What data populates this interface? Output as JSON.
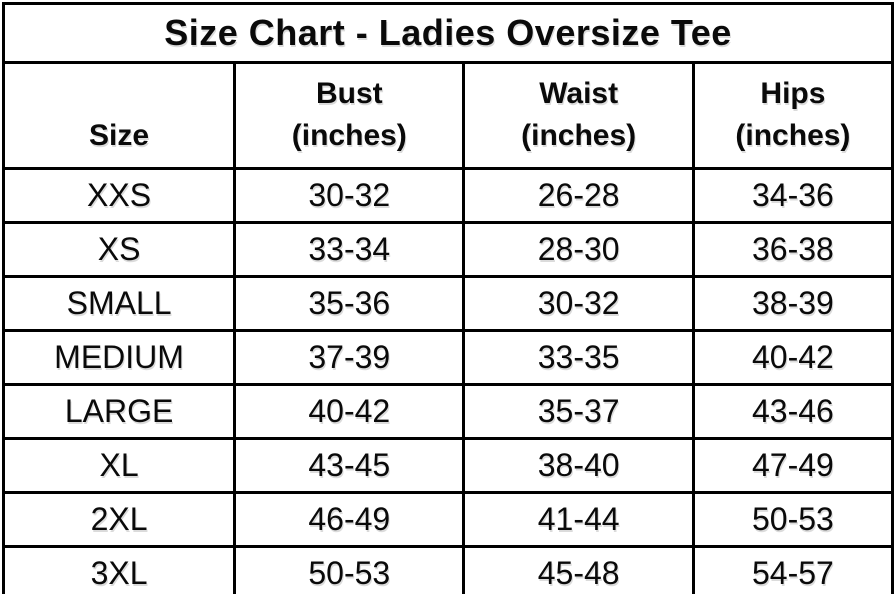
{
  "title": "Size Chart - Ladies Oversize Tee",
  "colors": {
    "background": "#ffffff",
    "border": "#000000",
    "text": "#0a0a0a"
  },
  "table": {
    "headers": {
      "size": {
        "line1": "Size",
        "line2": ""
      },
      "bust": {
        "line1": "Bust",
        "line2": "(inches)"
      },
      "waist": {
        "line1": "Waist",
        "line2": "(inches)"
      },
      "hips": {
        "line1": "Hips",
        "line2": "(inches)"
      }
    },
    "rows": [
      {
        "size": "XXS",
        "bust": "30-32",
        "waist": "26-28",
        "hips": "34-36"
      },
      {
        "size": "XS",
        "bust": "33-34",
        "waist": "28-30",
        "hips": "36-38"
      },
      {
        "size": "SMALL",
        "bust": "35-36",
        "waist": "30-32",
        "hips": "38-39"
      },
      {
        "size": "MEDIUM",
        "bust": "37-39",
        "waist": "33-35",
        "hips": "40-42"
      },
      {
        "size": "LARGE",
        "bust": "40-42",
        "waist": "35-37",
        "hips": "43-46"
      },
      {
        "size": "XL",
        "bust": "43-45",
        "waist": "38-40",
        "hips": "47-49"
      },
      {
        "size": "2XL",
        "bust": "46-49",
        "waist": "41-44",
        "hips": "50-53"
      },
      {
        "size": "3XL",
        "bust": "50-53",
        "waist": "45-48",
        "hips": "54-57"
      }
    ]
  },
  "chart_data": {
    "type": "table",
    "title": "Size Chart - Ladies Oversize Tee",
    "columns": [
      "Size",
      "Bust (inches)",
      "Waist (inches)",
      "Hips (inches)"
    ],
    "rows": [
      [
        "XXS",
        "30-32",
        "26-28",
        "34-36"
      ],
      [
        "XS",
        "33-34",
        "28-30",
        "36-38"
      ],
      [
        "SMALL",
        "35-36",
        "30-32",
        "38-39"
      ],
      [
        "MEDIUM",
        "37-39",
        "33-35",
        "40-42"
      ],
      [
        "LARGE",
        "40-42",
        "35-37",
        "43-46"
      ],
      [
        "XL",
        "43-45",
        "38-40",
        "47-49"
      ],
      [
        "2XL",
        "46-49",
        "41-44",
        "50-53"
      ],
      [
        "3XL",
        "50-53",
        "45-48",
        "54-57"
      ]
    ]
  }
}
